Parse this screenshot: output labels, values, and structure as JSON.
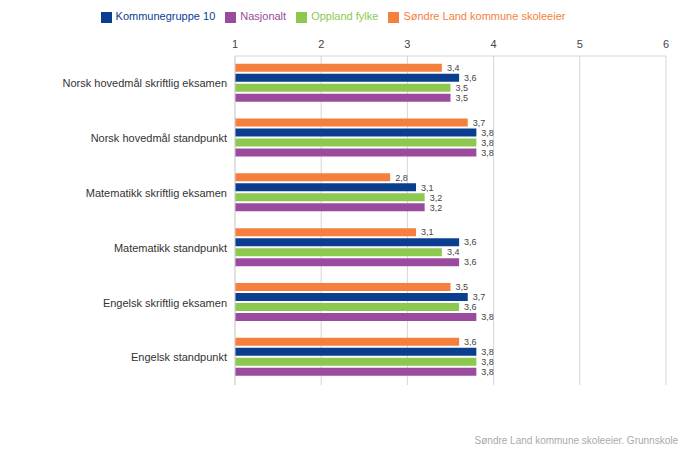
{
  "chart_data": {
    "type": "bar",
    "orientation": "horizontal",
    "source": "Søndre Land kommune skoleeier, Grunnskole",
    "categories": [
      "Norsk hovedmål skriftlig eksamen",
      "Norsk hovedmål standpunkt",
      "Matematikk skriftlig eksamen",
      "Matematikk standpunkt",
      "Engelsk skriftlig eksamen",
      "Engelsk standpunkt"
    ],
    "series": [
      {
        "name": "Søndre Land kommune skoleeier",
        "color": "#f5803e",
        "values": [
          3.4,
          3.7,
          2.8,
          3.1,
          3.5,
          3.6
        ],
        "value_labels": [
          "3,4",
          "3,7",
          "2,8",
          "3,1",
          "3,5",
          "3,6"
        ]
      },
      {
        "name": "Kommunegruppe 10",
        "color": "#0b3e8f",
        "values": [
          3.6,
          3.8,
          3.1,
          3.6,
          3.7,
          3.8
        ],
        "value_labels": [
          "3,6",
          "3,8",
          "3,1",
          "3,6",
          "3,7",
          "3,8"
        ]
      },
      {
        "name": "Oppland fylke",
        "color": "#8dc94f",
        "values": [
          3.5,
          3.8,
          3.2,
          3.4,
          3.6,
          3.8
        ],
        "value_labels": [
          "3,5",
          "3,8",
          "3,2",
          "3,4",
          "3,6",
          "3,8"
        ]
      },
      {
        "name": "Nasjonalt",
        "color": "#9b4b9e",
        "values": [
          3.5,
          3.8,
          3.2,
          3.6,
          3.8,
          3.8
        ],
        "value_labels": [
          "3,5",
          "3,8",
          "3,2",
          "3,6",
          "3,8",
          "3,8"
        ]
      }
    ],
    "xlim": [
      1,
      6
    ],
    "xticks": [
      1,
      2,
      3,
      4,
      5,
      6
    ],
    "grid": true,
    "legend": "top",
    "data_labels": true
  }
}
